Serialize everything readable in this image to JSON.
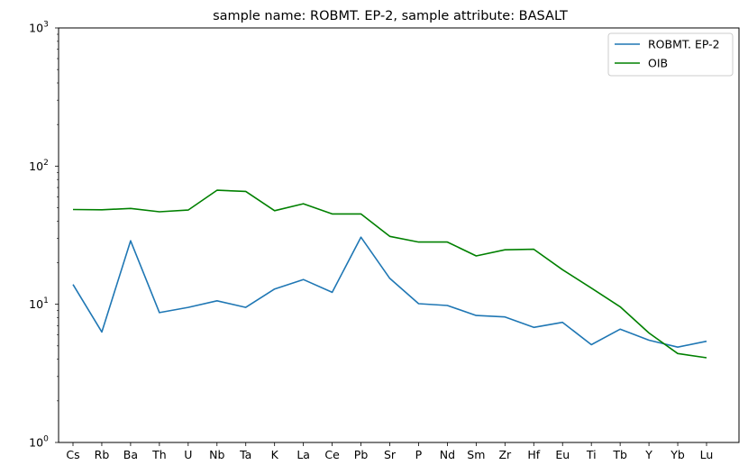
{
  "chart_data": {
    "type": "line",
    "title": "sample name: ROBMT. EP-2, sample attribute: BASALT",
    "xlabel": "",
    "ylabel": "",
    "yscale": "log",
    "ylim": [
      1,
      1000
    ],
    "y_ticks": [
      {
        "value": 1,
        "base": "10",
        "exp": "0"
      },
      {
        "value": 10,
        "base": "10",
        "exp": "1"
      },
      {
        "value": 100,
        "base": "10",
        "exp": "2"
      },
      {
        "value": 1000,
        "base": "10",
        "exp": "3"
      }
    ],
    "grid": false,
    "legend_position": "top-right",
    "categories": [
      "Cs",
      "Rb",
      "Ba",
      "Th",
      "U",
      "Nb",
      "Ta",
      "K",
      "La",
      "Ce",
      "Pb",
      "Sr",
      "P",
      "Nd",
      "Sm",
      "Zr",
      "Hf",
      "Eu",
      "Ti",
      "Tb",
      "Y",
      "Yb",
      "Lu"
    ],
    "series": [
      {
        "name": "ROBMT. EP-2",
        "color": "#1f77b4",
        "values": [
          13.9,
          6.3,
          28.8,
          8.7,
          9.5,
          10.6,
          9.5,
          12.9,
          15.1,
          12.2,
          30.6,
          15.4,
          10.1,
          9.8,
          8.3,
          8.1,
          6.8,
          7.4,
          5.1,
          6.6,
          5.5,
          4.9,
          5.4
        ]
      },
      {
        "name": "OIB",
        "color": "#008000",
        "values": [
          48.5,
          48.3,
          49.4,
          46.7,
          48.1,
          66.9,
          65.6,
          47.6,
          53.4,
          45.1,
          45.1,
          31.0,
          28.2,
          28.2,
          22.4,
          24.8,
          25.0,
          17.8,
          13.1,
          9.6,
          6.2,
          4.4,
          4.1
        ]
      }
    ]
  }
}
